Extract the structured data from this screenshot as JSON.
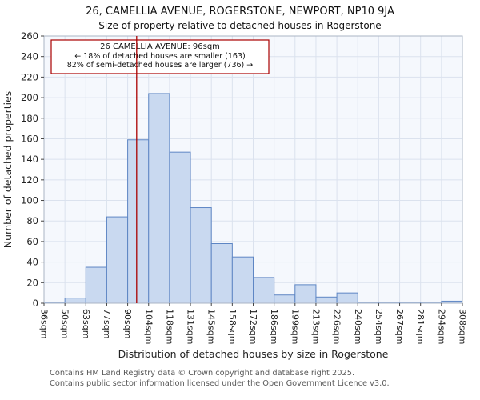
{
  "chart_data": {
    "type": "bar",
    "title": "26, CAMELLIA AVENUE, ROGERSTONE, NEWPORT, NP10 9JA",
    "subtitle": "Size of property relative to detached houses in Rogerstone",
    "xlabel": "Distribution of detached houses by size in Rogerstone",
    "ylabel": "Number of detached properties",
    "ylim": [
      0,
      260
    ],
    "ytick_step": 20,
    "grid": true,
    "bin_edges": [
      36,
      50,
      63,
      77,
      90,
      104,
      118,
      131,
      145,
      158,
      172,
      186,
      199,
      213,
      226,
      240,
      254,
      267,
      281,
      294,
      308
    ],
    "bin_labels": [
      "36sqm",
      "50sqm",
      "63sqm",
      "77sqm",
      "90sqm",
      "104sqm",
      "118sqm",
      "131sqm",
      "145sqm",
      "158sqm",
      "172sqm",
      "186sqm",
      "199sqm",
      "213sqm",
      "226sqm",
      "240sqm",
      "254sqm",
      "267sqm",
      "281sqm",
      "294sqm",
      "308sqm"
    ],
    "values": [
      1,
      5,
      35,
      84,
      159,
      204,
      147,
      93,
      58,
      45,
      25,
      8,
      18,
      6,
      10,
      1,
      1,
      1,
      1,
      2
    ],
    "marker": {
      "value_sqm": 96
    },
    "annotation": {
      "line1": "26 CAMELLIA AVENUE: 96sqm",
      "line2": "← 18% of detached houses are smaller (163)",
      "line3": "82% of semi-detached houses are larger (736) →"
    },
    "colors": {
      "bar_fill": "#c9d9f0",
      "bar_stroke": "#5e86c4",
      "marker": "#aa0000",
      "grid": "#dbe2ee",
      "plot_bg": "#f5f8fd",
      "plot_border": "#aab4c4",
      "text": "#222222"
    }
  },
  "footer": {
    "line1": "Contains HM Land Registry data © Crown copyright and database right 2025.",
    "line2": "Contains public sector information licensed under the Open Government Licence v3.0."
  }
}
